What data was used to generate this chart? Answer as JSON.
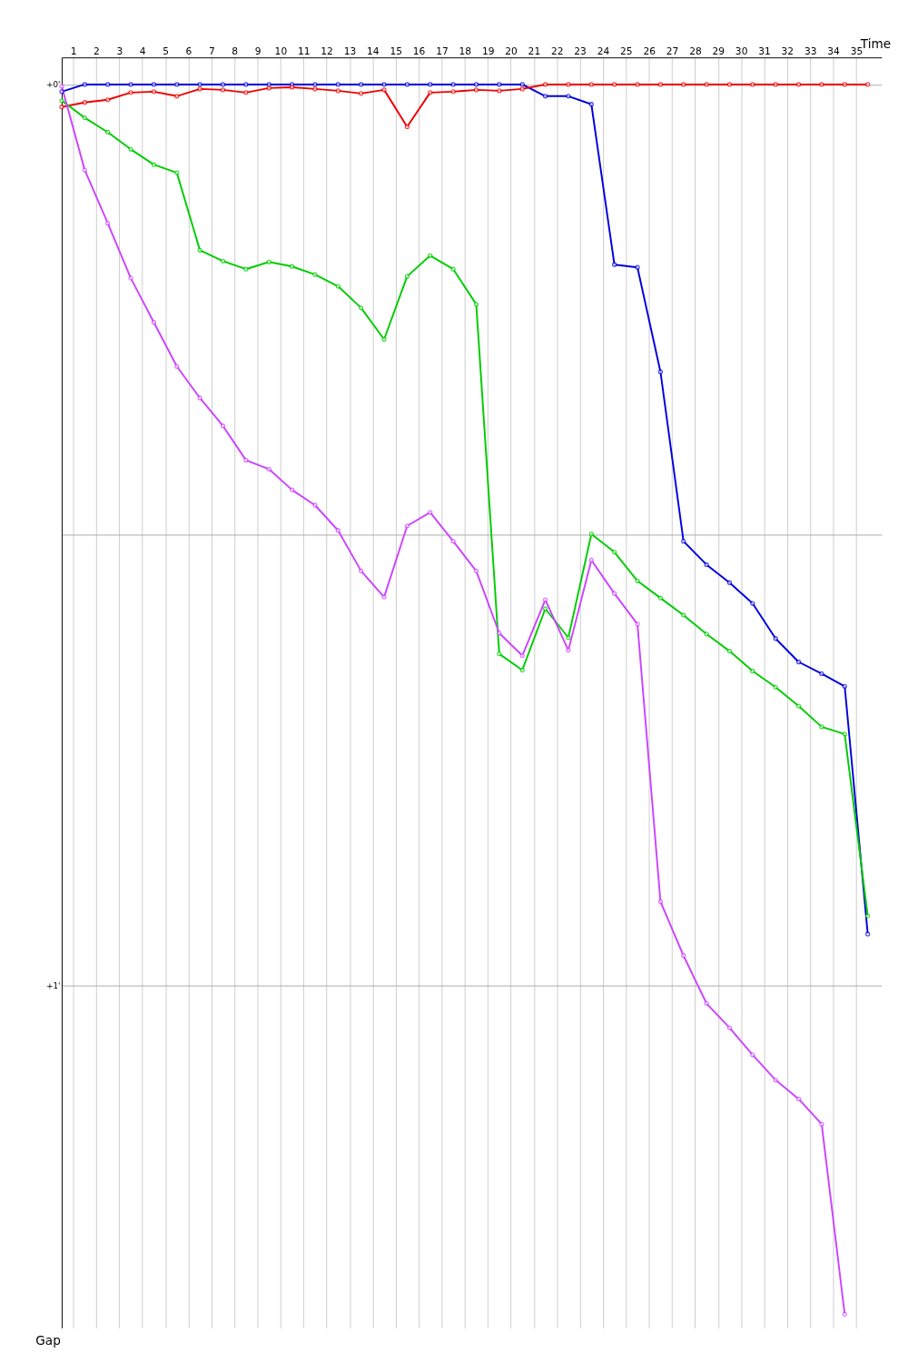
{
  "chart_data": {
    "type": "line",
    "xlabel": "Time",
    "ylabel": "Gap",
    "x": [
      0,
      1,
      2,
      3,
      4,
      5,
      6,
      7,
      8,
      9,
      10,
      11,
      12,
      13,
      14,
      15,
      16,
      17,
      18,
      19,
      20,
      21,
      22,
      23,
      24,
      25,
      26,
      27,
      28,
      29,
      30,
      31,
      32,
      33,
      34,
      35
    ],
    "series": [
      {
        "color": "#0000dd",
        "values": [
          0.008,
          0,
          0,
          0,
          0,
          0,
          0,
          0,
          0,
          0,
          0,
          0,
          0,
          0,
          0,
          0,
          0,
          0,
          0,
          0,
          0,
          0.013,
          0.013,
          0.022,
          0.2,
          0.203,
          0.319,
          0.507,
          0.533,
          0.553,
          0.576,
          0.615,
          0.641,
          0.654,
          0.668,
          0.943
        ]
      },
      {
        "color": "#ee0000",
        "values": [
          0.025,
          0.02,
          0.017,
          0.009,
          0.008,
          0.013,
          0.005,
          0.006,
          0.009,
          0.004,
          0.003,
          0.005,
          0.007,
          0.01,
          0.006,
          0.047,
          0.009,
          0.008,
          0.006,
          0.007,
          0.005,
          0,
          0,
          0,
          0,
          0,
          0,
          0,
          0,
          0,
          0,
          0,
          0,
          0,
          0,
          0
        ]
      },
      {
        "color": "#00cc00",
        "values": [
          0.018,
          0.037,
          0.053,
          0.072,
          0.089,
          0.098,
          0.184,
          0.196,
          0.205,
          0.197,
          0.202,
          0.211,
          0.224,
          0.248,
          0.283,
          0.213,
          0.19,
          0.205,
          0.244,
          0.632,
          0.65,
          0.582,
          0.614,
          0.499,
          0.519,
          0.551,
          0.57,
          0.589,
          0.61,
          0.629,
          0.651,
          0.669,
          0.69,
          0.713,
          0.721,
          0.923
        ]
      },
      {
        "color": "#cc44ff",
        "values": [
          0.002,
          0.095,
          0.154,
          0.215,
          0.264,
          0.313,
          0.348,
          0.379,
          0.417,
          0.427,
          0.45,
          0.467,
          0.495,
          0.54,
          0.569,
          0.49,
          0.475,
          0.507,
          0.54,
          0.609,
          0.634,
          0.572,
          0.628,
          0.528,
          0.565,
          0.599,
          0.907,
          0.967,
          1.02,
          1.047,
          1.077,
          1.105,
          1.126,
          1.154,
          1.365,
          null
        ]
      }
    ],
    "xlim": [
      0,
      35.6
    ],
    "xticks": [
      {
        "value": 0.5,
        "label": "1"
      },
      {
        "value": 1.5,
        "label": "2"
      },
      {
        "value": 2.5,
        "label": "3"
      },
      {
        "value": 3.5,
        "label": "4"
      },
      {
        "value": 4.5,
        "label": "5"
      },
      {
        "value": 5.5,
        "label": "6"
      },
      {
        "value": 6.5,
        "label": "7"
      },
      {
        "value": 7.5,
        "label": "8"
      },
      {
        "value": 8.5,
        "label": "9"
      },
      {
        "value": 9.5,
        "label": "10"
      },
      {
        "value": 10.5,
        "label": "11"
      },
      {
        "value": 11.5,
        "label": "12"
      },
      {
        "value": 12.5,
        "label": "13"
      },
      {
        "value": 13.5,
        "label": "14"
      },
      {
        "value": 14.5,
        "label": "15"
      },
      {
        "value": 15.5,
        "label": "16"
      },
      {
        "value": 16.5,
        "label": "17"
      },
      {
        "value": 17.5,
        "label": "18"
      },
      {
        "value": 18.5,
        "label": "19"
      },
      {
        "value": 19.5,
        "label": "20"
      },
      {
        "value": 20.5,
        "label": "21"
      },
      {
        "value": 21.5,
        "label": "22"
      },
      {
        "value": 22.5,
        "label": "23"
      },
      {
        "value": 23.5,
        "label": "24"
      },
      {
        "value": 24.5,
        "label": "25"
      },
      {
        "value": 25.5,
        "label": "26"
      },
      {
        "value": 26.5,
        "label": "27"
      },
      {
        "value": 27.5,
        "label": "28"
      },
      {
        "value": 28.5,
        "label": "29"
      },
      {
        "value": 29.5,
        "label": "30"
      },
      {
        "value": 30.5,
        "label": "31"
      },
      {
        "value": 31.5,
        "label": "32"
      },
      {
        "value": 32.5,
        "label": "33"
      },
      {
        "value": 33.5,
        "label": "34"
      },
      {
        "value": 34.5,
        "label": "35"
      }
    ],
    "ylim": [
      1.38,
      -0.03
    ],
    "yticks": [
      {
        "value": 0,
        "label": "+0'"
      },
      {
        "value": 0.5,
        "label": null
      },
      {
        "value": 1,
        "label": "+1'"
      }
    ],
    "grid": true,
    "legend": false,
    "marker": "circle",
    "line_style": "solid"
  }
}
